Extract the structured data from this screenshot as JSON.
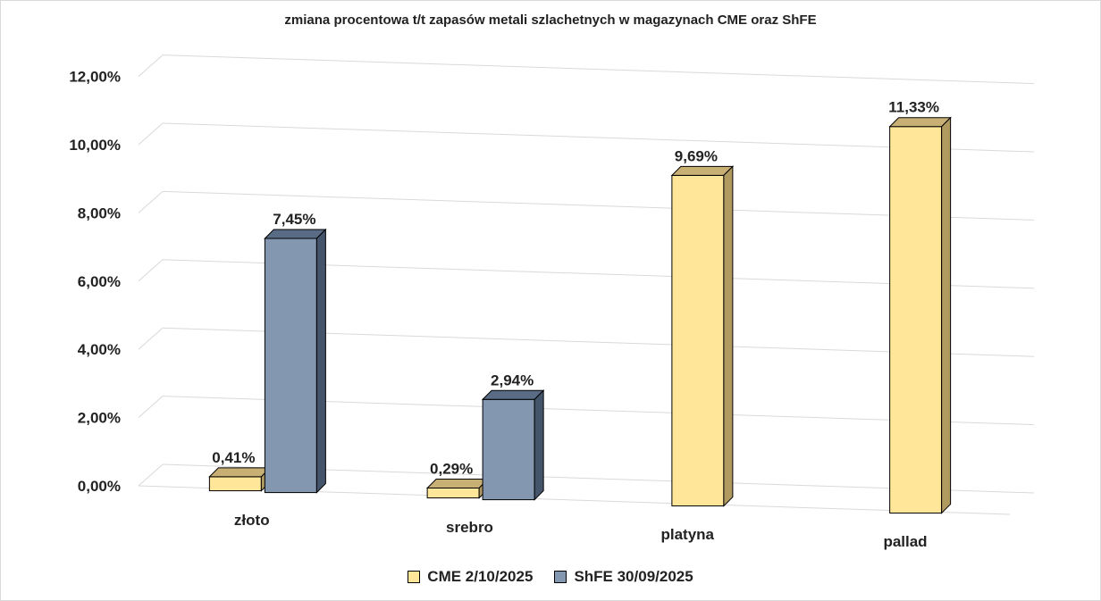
{
  "chart_data": {
    "type": "bar",
    "title": "zmiana procentowa t/t zapasów metali szlachetnych w magazynach CME oraz ShFE",
    "categories": [
      "złoto",
      "srebro",
      "platyna",
      "pallad"
    ],
    "series": [
      {
        "name": "CME 2/10/2025",
        "values": [
          0.41,
          0.29,
          9.69,
          11.33
        ],
        "labels": [
          "0,41%",
          "0,29%",
          "9,69%",
          "11,33%"
        ],
        "color": "#FFE699",
        "color_top": "#C8B075",
        "color_side": "#B09A60"
      },
      {
        "name": "ShFE 30/09/2025",
        "values": [
          7.45,
          2.94,
          null,
          null
        ],
        "labels": [
          "7,45%",
          "2,94%",
          "",
          ""
        ],
        "color": "#8497B0",
        "color_top": "#596B85",
        "color_side": "#44546A"
      }
    ],
    "ylim": [
      0,
      12
    ],
    "yticks": [
      "0,00%",
      "2,00%",
      "4,00%",
      "6,00%",
      "8,00%",
      "10,00%",
      "12,00%"
    ],
    "grid": true,
    "legend_position": "bottom"
  }
}
